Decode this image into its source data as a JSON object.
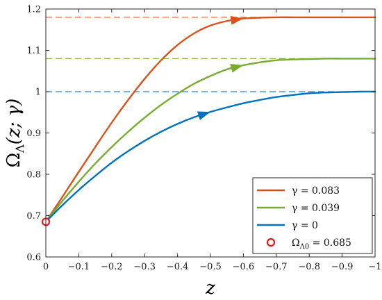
{
  "chart_data": {
    "type": "line",
    "xlabel": "z",
    "ylabel": "ΩΛ(z; γ)",
    "xlim": [
      0,
      -1
    ],
    "ylim": [
      0.6,
      1.2
    ],
    "x_reversed": true,
    "x_ticks": [
      0,
      -0.1,
      -0.2,
      -0.3,
      -0.4,
      -0.5,
      -0.6,
      -0.7,
      -0.8,
      -0.9,
      -1
    ],
    "x_tick_labels": [
      "0",
      "−0.1",
      "−0.2",
      "−0.3",
      "−0.4",
      "−0.5",
      "−0.6",
      "−0.7",
      "−0.8",
      "−0.9",
      "−1"
    ],
    "y_ticks": [
      0.6,
      0.7,
      0.8,
      0.9,
      1.0,
      1.1,
      1.2
    ],
    "y_tick_labels": [
      "0.6",
      "0.7",
      "0.8",
      "0.9",
      "1",
      "1.1",
      "1.2"
    ],
    "grid": false,
    "legend_position": "bottom-right",
    "series": [
      {
        "name": "γ = 0.083",
        "color": "#d95319",
        "asymptote": 1.18,
        "arrow_at_z": -0.6,
        "x": [
          0,
          -0.05,
          -0.1,
          -0.15,
          -0.2,
          -0.25,
          -0.3,
          -0.35,
          -0.4,
          -0.45,
          -0.5,
          -0.55,
          -0.6,
          -0.65,
          -0.7,
          -0.75,
          -0.8,
          -0.85,
          -0.9,
          -0.95,
          -1
        ],
        "y": [
          0.685,
          0.745,
          0.806,
          0.866,
          0.925,
          0.98,
          1.031,
          1.076,
          1.113,
          1.141,
          1.16,
          1.171,
          1.177,
          1.179,
          1.18,
          1.18,
          1.18,
          1.18,
          1.18,
          1.18,
          1.18
        ]
      },
      {
        "name": "γ = 0.039",
        "color": "#77ac30",
        "asymptote": 1.08,
        "arrow_at_z": -0.6,
        "x": [
          0,
          -0.05,
          -0.1,
          -0.15,
          -0.2,
          -0.25,
          -0.3,
          -0.35,
          -0.4,
          -0.45,
          -0.5,
          -0.55,
          -0.6,
          -0.65,
          -0.7,
          -0.75,
          -0.8,
          -0.85,
          -0.9,
          -0.95,
          -1
        ],
        "y": [
          0.685,
          0.735,
          0.782,
          0.826,
          0.866,
          0.903,
          0.937,
          0.968,
          0.995,
          1.019,
          1.038,
          1.054,
          1.064,
          1.071,
          1.076,
          1.078,
          1.079,
          1.08,
          1.08,
          1.08,
          1.08
        ]
      },
      {
        "name": "γ = 0",
        "color": "#0072bd",
        "asymptote": 1.0,
        "arrow_at_z": -0.5,
        "x": [
          0,
          -0.05,
          -0.1,
          -0.15,
          -0.2,
          -0.25,
          -0.3,
          -0.35,
          -0.4,
          -0.45,
          -0.5,
          -0.55,
          -0.6,
          -0.65,
          -0.7,
          -0.75,
          -0.8,
          -0.85,
          -0.9,
          -0.95,
          -1
        ],
        "y": [
          0.685,
          0.725,
          0.762,
          0.796,
          0.828,
          0.856,
          0.881,
          0.903,
          0.922,
          0.938,
          0.951,
          0.962,
          0.972,
          0.98,
          0.987,
          0.992,
          0.996,
          0.998,
          0.999,
          1.0,
          1.0
        ]
      }
    ],
    "marker": {
      "name": "ΩΛ0 = 0.685",
      "x": 0,
      "y": 0.685,
      "color": "#e8141e"
    }
  }
}
